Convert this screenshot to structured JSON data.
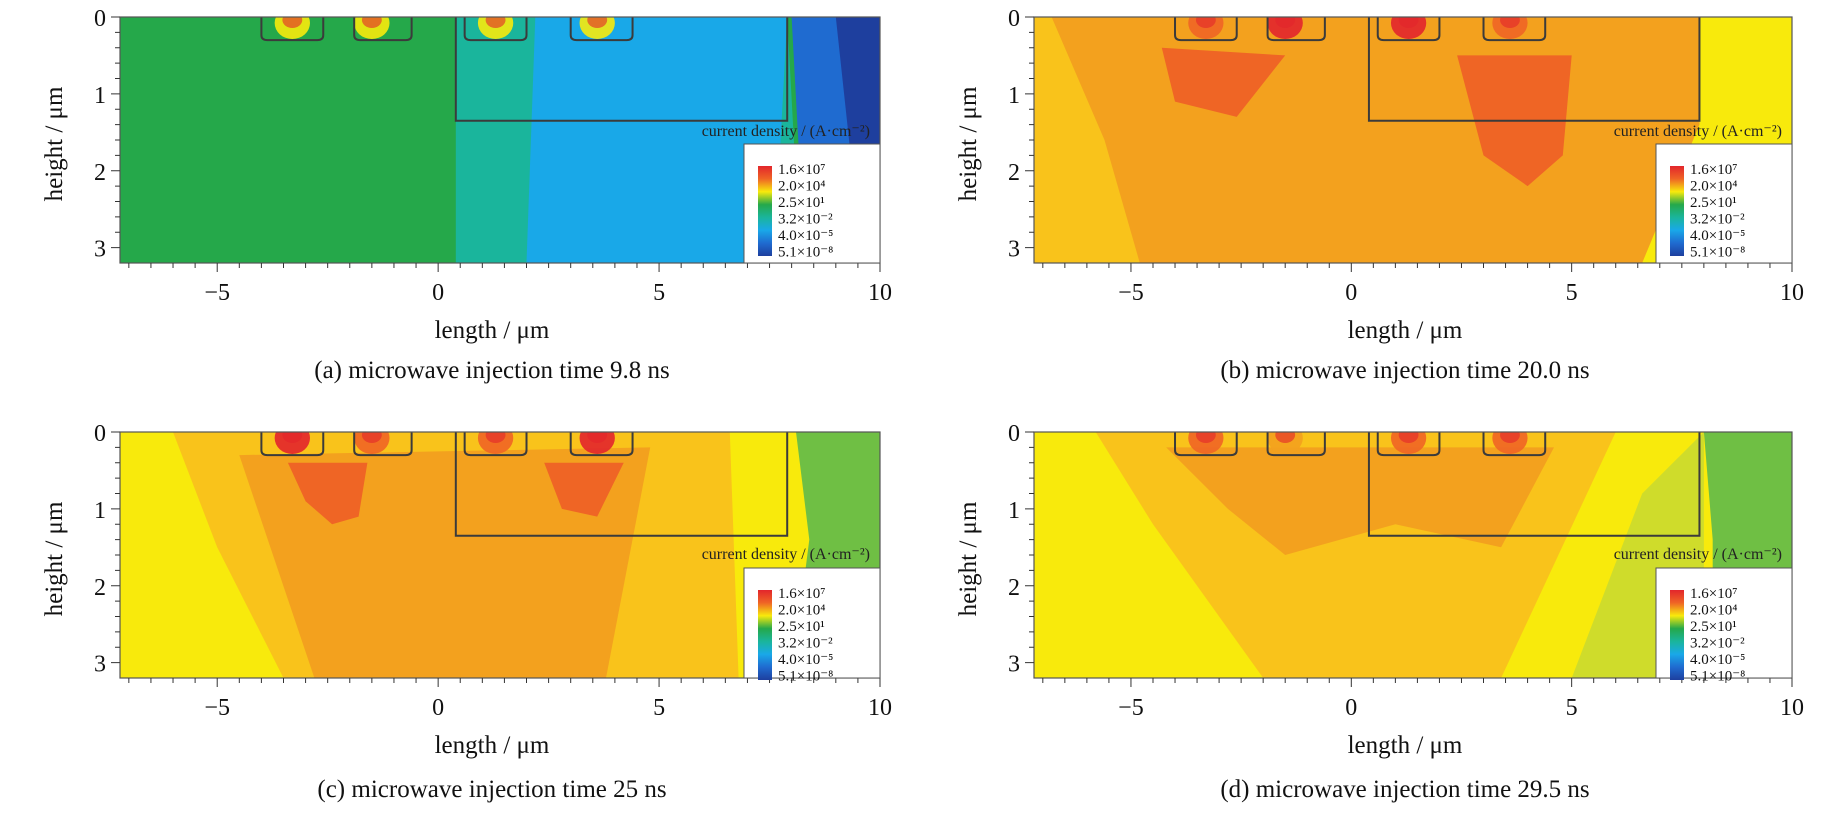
{
  "colors": {
    "dark_blue": "#1e3f9e",
    "blue": "#1f6bd0",
    "light_blue": "#19a8e8",
    "cyan_green": "#1ab59c",
    "green": "#25a84a",
    "light_green": "#6fbf44",
    "yellow_green": "#cfdc2b",
    "yellow": "#f8ea0c",
    "yellow_orange": "#f9c31b",
    "orange": "#f3a11e",
    "orange_red": "#ef6525",
    "red": "#e2252c",
    "outline": "#3b3b3b"
  },
  "legend": {
    "header": "current density / (A·cm⁻²)",
    "entries": [
      {
        "mantissa": "1.6×10",
        "exponent": "7"
      },
      {
        "mantissa": "2.0×10",
        "exponent": "4"
      },
      {
        "mantissa": "2.5×10",
        "exponent": "1"
      },
      {
        "mantissa": "3.2×10",
        "exponent": "−2"
      },
      {
        "mantissa": "4.0×10",
        "exponent": "−5"
      },
      {
        "mantissa": "5.1×10",
        "exponent": "−8"
      }
    ]
  },
  "chart_data": [
    {
      "type": "heatmap",
      "caption": "(a) microwave injection time 9.8 ns",
      "xlabel": "length / μm",
      "ylabel": "height / μm",
      "xlim": [
        -7.2,
        10
      ],
      "ylim": [
        0,
        3.2
      ],
      "xticks": [
        -5,
        0,
        5,
        10
      ],
      "xtick_labels": [
        "−5",
        "0",
        "5",
        "10"
      ],
      "yticks": [
        0,
        1,
        2,
        3
      ],
      "ytick_labels": [
        "0",
        "1",
        "2",
        "3"
      ],
      "y_inverted": true,
      "colorscale": "log current density, 5.1×10⁻⁸ to 1.6×10⁷ A·cm⁻²",
      "background": "green",
      "regions": [
        {
          "color": "cyan_green",
          "points": [
            [
              0.4,
              0
            ],
            [
              7.9,
              0
            ],
            [
              8.2,
              3.2
            ],
            [
              0.4,
              3.2
            ]
          ]
        },
        {
          "color": "light_blue",
          "points": [
            [
              2.2,
              0
            ],
            [
              7.9,
              0
            ],
            [
              7.6,
              3.2
            ],
            [
              2.0,
              3.2
            ]
          ]
        },
        {
          "color": "blue",
          "points": [
            [
              8.0,
              0
            ],
            [
              10,
              0
            ],
            [
              10,
              3.2
            ],
            [
              8.3,
              3.2
            ]
          ]
        },
        {
          "color": "dark_blue",
          "points": [
            [
              9.0,
              0
            ],
            [
              10,
              0
            ],
            [
              10,
              3.2
            ],
            [
              9.6,
              3.2
            ]
          ]
        }
      ],
      "hotspots": [
        {
          "x": -3.3,
          "w": 1.0,
          "color": "yellow"
        },
        {
          "x": -1.5,
          "w": 1.0,
          "color": "yellow"
        },
        {
          "x": 1.3,
          "w": 1.0,
          "color": "yellow"
        },
        {
          "x": 3.6,
          "w": 1.0,
          "color": "yellow"
        }
      ]
    },
    {
      "type": "heatmap",
      "caption": "(b) microwave injection time 20.0 ns",
      "xlabel": "length / μm",
      "ylabel": "height / μm",
      "xlim": [
        -7.2,
        10
      ],
      "ylim": [
        0,
        3.2
      ],
      "xticks": [
        -5,
        0,
        5,
        10
      ],
      "xtick_labels": [
        "−5",
        "0",
        "5",
        "10"
      ],
      "yticks": [
        0,
        1,
        2,
        3
      ],
      "ytick_labels": [
        "0",
        "1",
        "2",
        "3"
      ],
      "y_inverted": true,
      "colorscale": "log current density, 5.1×10⁻⁸ to 1.6×10⁷ A·cm⁻²",
      "background": "yellow_orange",
      "regions": [
        {
          "color": "orange",
          "points": [
            [
              -6.8,
              0
            ],
            [
              7.9,
              0
            ],
            [
              7.9,
              1.4
            ],
            [
              6.6,
              3.2
            ],
            [
              -4.8,
              3.2
            ],
            [
              -5.6,
              1.6
            ]
          ]
        },
        {
          "color": "yellow",
          "points": [
            [
              7.9,
              0
            ],
            [
              10,
              0
            ],
            [
              10,
              3.2
            ],
            [
              6.6,
              3.2
            ],
            [
              7.9,
              1.4
            ]
          ]
        },
        {
          "color": "orange_red",
          "points": [
            [
              -4.3,
              0.4
            ],
            [
              -1.5,
              0.5
            ],
            [
              -2.6,
              1.3
            ],
            [
              -4.0,
              1.1
            ]
          ]
        },
        {
          "color": "orange_red",
          "points": [
            [
              2.4,
              0.5
            ],
            [
              5.0,
              0.5
            ],
            [
              4.8,
              1.8
            ],
            [
              4.0,
              2.2
            ],
            [
              3.0,
              1.8
            ]
          ]
        }
      ],
      "hotspots": [
        {
          "x": -3.3,
          "w": 1.0,
          "color": "orange_red"
        },
        {
          "x": -1.5,
          "w": 1.0,
          "color": "red"
        },
        {
          "x": 1.3,
          "w": 1.0,
          "color": "red"
        },
        {
          "x": 3.6,
          "w": 1.0,
          "color": "orange_red"
        }
      ]
    },
    {
      "type": "heatmap",
      "caption": "(c) microwave injection time 25 ns",
      "xlabel": "length / μm",
      "ylabel": "height / μm",
      "xlim": [
        -7.2,
        10
      ],
      "ylim": [
        0,
        3.2
      ],
      "xticks": [
        -5,
        0,
        5,
        10
      ],
      "xtick_labels": [
        "−5",
        "0",
        "5",
        "10"
      ],
      "yticks": [
        0,
        1,
        2,
        3
      ],
      "ytick_labels": [
        "0",
        "1",
        "2",
        "3"
      ],
      "y_inverted": true,
      "colorscale": "log current density, 5.1×10⁻⁸ to 1.6×10⁷ A·cm⁻²",
      "background": "yellow",
      "regions": [
        {
          "color": "yellow_orange",
          "points": [
            [
              -6.0,
              0
            ],
            [
              6.6,
              0
            ],
            [
              6.8,
              3.2
            ],
            [
              -3.5,
              3.2
            ],
            [
              -5.0,
              1.5
            ]
          ]
        },
        {
          "color": "orange",
          "points": [
            [
              -4.5,
              0.3
            ],
            [
              4.8,
              0.2
            ],
            [
              3.8,
              3.2
            ],
            [
              -2.8,
              3.2
            ]
          ]
        },
        {
          "color": "light_green",
          "points": [
            [
              8.1,
              0
            ],
            [
              10,
              0
            ],
            [
              10,
              3.2
            ],
            [
              8.0,
              3.2
            ],
            [
              8.4,
              1.4
            ]
          ]
        },
        {
          "color": "orange_red",
          "points": [
            [
              -3.4,
              0.4
            ],
            [
              -1.6,
              0.4
            ],
            [
              -1.8,
              1.1
            ],
            [
              -2.4,
              1.2
            ],
            [
              -3.0,
              0.9
            ]
          ]
        },
        {
          "color": "orange_red",
          "points": [
            [
              2.4,
              0.4
            ],
            [
              4.2,
              0.4
            ],
            [
              3.6,
              1.1
            ],
            [
              2.8,
              1.0
            ]
          ]
        }
      ],
      "hotspots": [
        {
          "x": -3.3,
          "w": 1.0,
          "color": "red"
        },
        {
          "x": -1.5,
          "w": 1.0,
          "color": "orange_red"
        },
        {
          "x": 1.3,
          "w": 1.0,
          "color": "orange_red"
        },
        {
          "x": 3.6,
          "w": 1.0,
          "color": "red"
        }
      ]
    },
    {
      "type": "heatmap",
      "caption": "(d) microwave injection time 29.5 ns",
      "xlabel": "length / μm",
      "ylabel": "height / μm",
      "xlim": [
        -7.2,
        10
      ],
      "ylim": [
        0,
        3.2
      ],
      "xticks": [
        -5,
        0,
        5,
        10
      ],
      "xtick_labels": [
        "−5",
        "0",
        "5",
        "10"
      ],
      "yticks": [
        0,
        1,
        2,
        3
      ],
      "ytick_labels": [
        "0",
        "1",
        "2",
        "3"
      ],
      "y_inverted": true,
      "colorscale": "log current density, 5.1×10⁻⁸ to 1.6×10⁷ A·cm⁻²",
      "background": "yellow",
      "regions": [
        {
          "color": "yellow_orange",
          "points": [
            [
              -5.8,
              0
            ],
            [
              6.0,
              0
            ],
            [
              3.4,
              3.2
            ],
            [
              -2.0,
              3.2
            ],
            [
              -4.5,
              1.2
            ]
          ]
        },
        {
          "color": "orange",
          "points": [
            [
              -4.2,
              0.2
            ],
            [
              4.6,
              0.2
            ],
            [
              3.4,
              1.5
            ],
            [
              1.0,
              1.2
            ],
            [
              -1.5,
              1.6
            ],
            [
              -2.8,
              1.0
            ]
          ]
        },
        {
          "color": "yellow_green",
          "points": [
            [
              5.0,
              3.2
            ],
            [
              6.6,
              0.8
            ],
            [
              8.0,
              0
            ],
            [
              8.0,
              3.2
            ]
          ]
        },
        {
          "color": "light_green",
          "points": [
            [
              8.0,
              0
            ],
            [
              10,
              0
            ],
            [
              10,
              3.2
            ],
            [
              8.2,
              3.2
            ],
            [
              8.2,
              1.4
            ]
          ]
        }
      ],
      "hotspots": [
        {
          "x": -3.3,
          "w": 1.0,
          "color": "orange_red"
        },
        {
          "x": -1.5,
          "w": 1.0,
          "color": "orange"
        },
        {
          "x": 1.3,
          "w": 1.0,
          "color": "orange_red"
        },
        {
          "x": 3.6,
          "w": 1.0,
          "color": "orange_red"
        }
      ]
    }
  ]
}
